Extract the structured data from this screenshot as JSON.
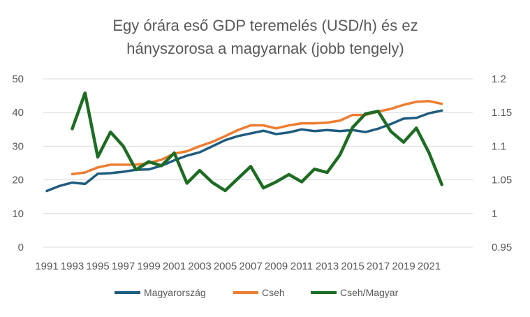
{
  "chart_data": {
    "type": "line",
    "title_lines": [
      "Egy órára eső GDP teremelés (USD/h) és ez",
      "hányszorosa a magyarnak (jobb tengely)"
    ],
    "x": [
      1991,
      1992,
      1993,
      1994,
      1995,
      1996,
      1997,
      1998,
      1999,
      2000,
      2001,
      2002,
      2003,
      2004,
      2005,
      2006,
      2007,
      2008,
      2009,
      2010,
      2011,
      2012,
      2013,
      2014,
      2015,
      2016,
      2017,
      2018,
      2019,
      2020,
      2021,
      2022
    ],
    "x_tick_labels": [
      "1991",
      "1993",
      "1995",
      "1997",
      "1999",
      "2001",
      "2003",
      "2005",
      "2007",
      "2009",
      "2011",
      "2013",
      "2015",
      "2017",
      "2019",
      "2021"
    ],
    "y_left_ticks": [
      "0",
      "10",
      "20",
      "30",
      "40",
      "50"
    ],
    "y_right_ticks": [
      "0.95",
      "1",
      "1.05",
      "1.1",
      "1.15",
      "1.2"
    ],
    "ylim_left": [
      0,
      50
    ],
    "ylim_right": [
      0.95,
      1.2
    ],
    "series": [
      {
        "name": "Magyarország",
        "color": "#1f5c80",
        "axis": "left",
        "values": [
          16.7,
          18.2,
          19.2,
          18.8,
          21.8,
          22.0,
          22.4,
          23.0,
          23.1,
          24.2,
          25.8,
          27.2,
          28.2,
          30.0,
          31.8,
          33.0,
          33.8,
          34.6,
          33.6,
          34.1,
          35.0,
          34.5,
          34.8,
          34.5,
          34.8,
          34.2,
          35.2,
          36.6,
          38.2,
          38.4,
          39.8,
          40.6
        ]
      },
      {
        "name": "Cseh",
        "color": "#ed7d31",
        "axis": "left",
        "values": [
          null,
          null,
          21.7,
          22.2,
          23.7,
          24.5,
          24.5,
          24.5,
          25.0,
          26.0,
          27.8,
          28.5,
          30.0,
          31.3,
          33.0,
          34.8,
          36.2,
          36.2,
          35.3,
          36.2,
          36.8,
          36.8,
          37.0,
          37.6,
          39.3,
          39.3,
          40.3,
          41.1,
          42.3,
          43.2,
          43.4,
          42.6
        ]
      },
      {
        "name": "Cseh/Magyar",
        "color": "#1e6c24",
        "axis": "right",
        "values": [
          null,
          null,
          1.126,
          1.179,
          1.084,
          1.121,
          1.1,
          1.065,
          1.077,
          1.071,
          1.09,
          1.045,
          1.064,
          1.046,
          1.034,
          1.052,
          1.07,
          1.038,
          1.047,
          1.058,
          1.047,
          1.066,
          1.061,
          1.087,
          1.128,
          1.148,
          1.152,
          1.122,
          1.106,
          1.127,
          1.09,
          1.043
        ]
      }
    ]
  }
}
